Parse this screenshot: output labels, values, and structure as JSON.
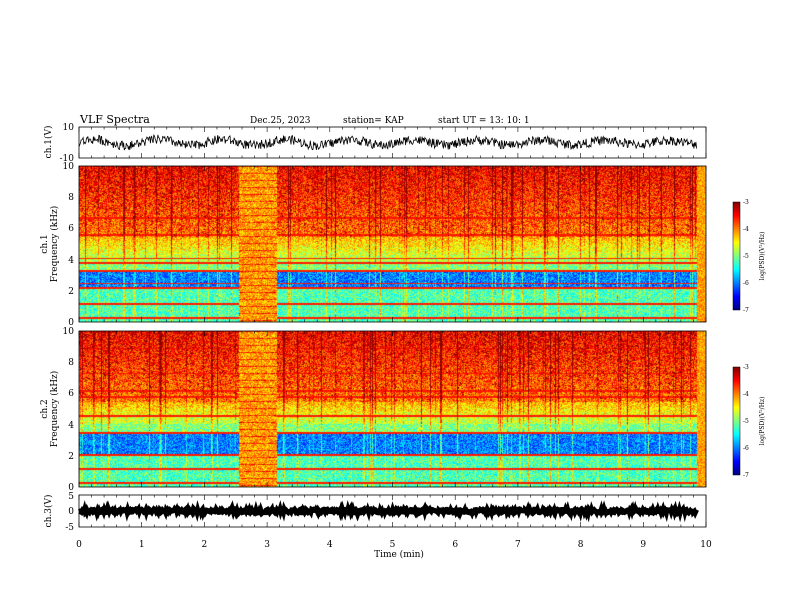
{
  "header": {
    "title": "VLF Spectra",
    "date": "Dec.25, 2023",
    "station": "station= KAP",
    "start": "start  UT  =   13: 10: 1"
  },
  "colors": {
    "spectrum": [
      "#00007f",
      "#0000ff",
      "#007fff",
      "#00ffff",
      "#7fff7f",
      "#ffff00",
      "#ff7f00",
      "#ff0000",
      "#7f0000"
    ],
    "trace": "#000000"
  },
  "chart_data": [
    {
      "type": "line",
      "panel": "ch1-waveform",
      "ylabel": "ch.1(V)",
      "ylim": [
        -10,
        10
      ],
      "yticks": [
        "10",
        "-10"
      ],
      "x_range_min": [
        0,
        9.85
      ],
      "y_typical_range": [
        -3,
        3
      ]
    },
    {
      "type": "heatmap",
      "panel": "ch1-spectrogram",
      "ylabel": "ch.1",
      "ylabel2": "Frequency (kHz)",
      "ylim": [
        0,
        10
      ],
      "yticks": [
        "0",
        "2",
        "4",
        "6",
        "8",
        "10"
      ],
      "colorbar": {
        "label": "log(PSD)(V²/Hz)",
        "range": [
          -7,
          -3
        ],
        "ticks": [
          "-3",
          "-4",
          "-5",
          "-6",
          "-7"
        ]
      },
      "features": {
        "disturbance_minutes": [
          2.55,
          3.15
        ],
        "quiet_band_khz": [
          2.2,
          3.3
        ],
        "lines_khz": [
          0.3,
          1.2,
          2.2,
          2.5,
          3.3,
          3.8,
          4.1,
          5.6,
          6.7
        ]
      }
    },
    {
      "type": "heatmap",
      "panel": "ch2-spectrogram",
      "ylabel": "ch.2",
      "ylabel2": "Frequency (kHz)",
      "ylim": [
        0,
        10
      ],
      "yticks": [
        "0",
        "2",
        "4",
        "6",
        "8",
        "10"
      ],
      "colorbar": {
        "label": "log(PSD)(V²/Hz)",
        "range": [
          -7,
          -3
        ],
        "ticks": [
          "-3",
          "-4",
          "-5",
          "-6",
          "-7"
        ]
      },
      "features": {
        "disturbance_minutes": [
          2.55,
          3.15
        ],
        "quiet_band_khz": [
          2.0,
          3.5
        ],
        "lines_khz": [
          0.3,
          1.2,
          2.1,
          3.5,
          4.6,
          5.8,
          6.2,
          7.3,
          8.9
        ]
      }
    },
    {
      "type": "line",
      "panel": "ch3-waveform",
      "ylabel": "ch.3(V)",
      "ylim": [
        -5,
        5
      ],
      "yticks": [
        "5",
        "0",
        "-5"
      ],
      "x_range_min": [
        0,
        9.85
      ],
      "y_typical_range": [
        -0.6,
        0.6
      ]
    }
  ],
  "xaxis": {
    "label": "Time (min)",
    "range": [
      0,
      10
    ],
    "ticks": [
      "0",
      "1",
      "2",
      "3",
      "4",
      "5",
      "6",
      "7",
      "8",
      "9",
      "10"
    ]
  }
}
